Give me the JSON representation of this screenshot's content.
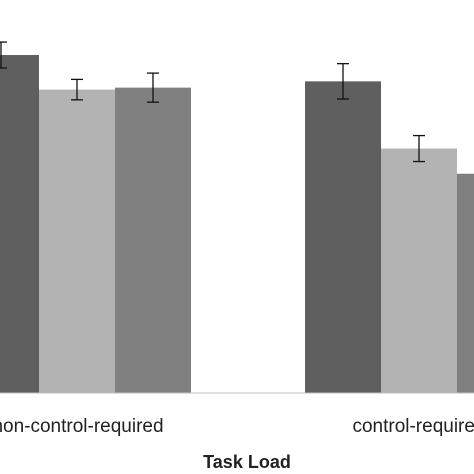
{
  "chart_data": {
    "type": "bar",
    "xlabel": "Task Load",
    "ylabel": "",
    "ylim": [
      0,
      100
    ],
    "grid": false,
    "categories": [
      "non-control-required",
      "control-required"
    ],
    "series": [
      {
        "color": "#5f5f5f",
        "values": [
          86.0,
          79.3
        ],
        "errors": [
          3.3,
          4.5
        ]
      },
      {
        "color": "#b3b3b3",
        "values": [
          77.2,
          62.2
        ],
        "errors": [
          2.6,
          3.3
        ]
      },
      {
        "color": "#808080",
        "values": [
          77.7,
          55.8
        ],
        "errors": [
          3.7,
          4.0
        ]
      }
    ]
  }
}
